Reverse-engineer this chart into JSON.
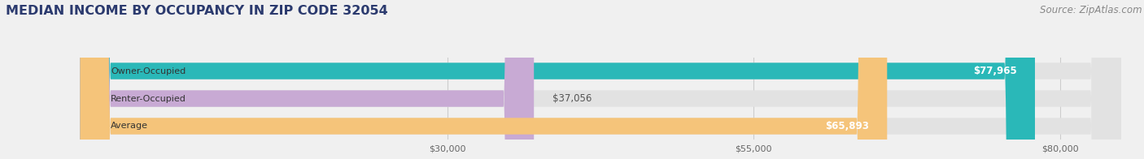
{
  "title": "MEDIAN INCOME BY OCCUPANCY IN ZIP CODE 32054",
  "source": "Source: ZipAtlas.com",
  "categories": [
    "Owner-Occupied",
    "Renter-Occupied",
    "Average"
  ],
  "values": [
    77965,
    37056,
    65893
  ],
  "bar_colors": [
    "#2ab8b8",
    "#c8aad4",
    "#f5c47a"
  ],
  "value_labels": [
    "$77,965",
    "$37,056",
    "$65,893"
  ],
  "value_inside": [
    true,
    false,
    true
  ],
  "x_ticks": [
    30000,
    55000,
    80000
  ],
  "x_tick_labels": [
    "$30,000",
    "$55,000",
    "$80,000"
  ],
  "xlim": [
    0,
    85000
  ],
  "title_color": "#2b3a6e",
  "source_color": "#888888",
  "title_fontsize": 11.5,
  "source_fontsize": 8.5,
  "bar_label_fontsize": 8,
  "value_label_fontsize": 8.5,
  "tick_label_fontsize": 8,
  "bg_color": "#f0f0f0",
  "bar_bg_color": "#e2e2e2",
  "grid_color": "#cccccc"
}
